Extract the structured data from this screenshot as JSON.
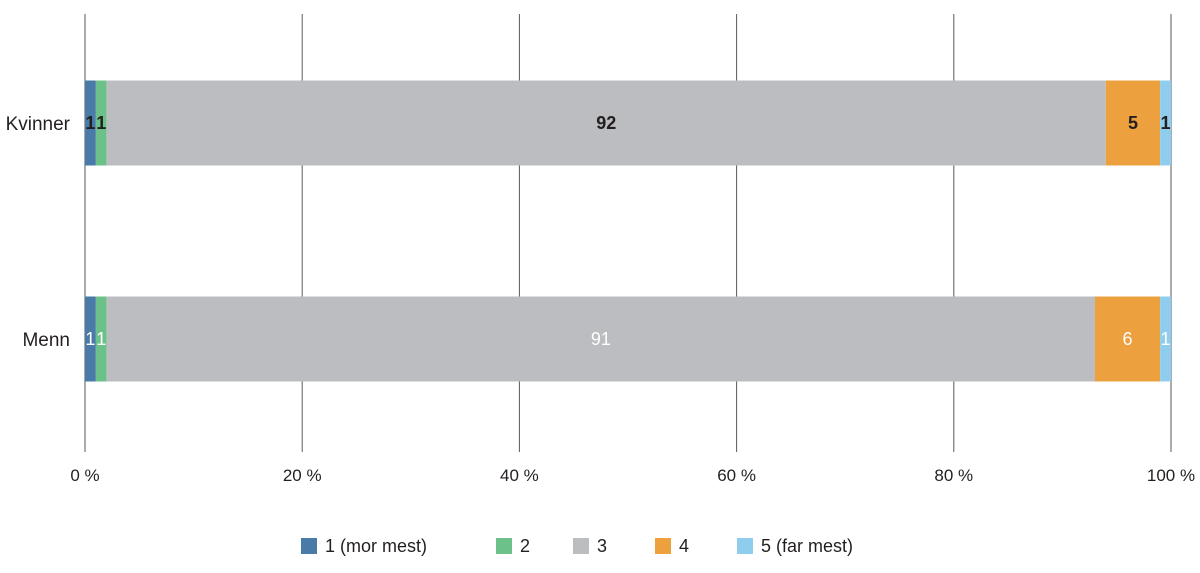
{
  "chart_data": {
    "type": "bar",
    "orientation": "horizontal",
    "stacked": true,
    "categories": [
      "Kvinner",
      "Menn"
    ],
    "series": [
      {
        "name": "1 (mor mest)",
        "color": "#4a7aa8",
        "values": [
          1,
          1
        ]
      },
      {
        "name": "2",
        "color": "#6cc18a",
        "values": [
          1,
          1
        ]
      },
      {
        "name": "3",
        "color": "#bcbdc0",
        "values": [
          92,
          91
        ]
      },
      {
        "name": "4",
        "color": "#eca03e",
        "values": [
          5,
          6
        ]
      },
      {
        "name": "5 (far mest)",
        "color": "#8fcdef",
        "values": [
          1,
          1
        ]
      }
    ],
    "category_label_style": [
      "bold-dark",
      "regular-white"
    ],
    "xlim": [
      0,
      100
    ],
    "x_ticks": [
      "0 %",
      "20 %",
      "40 %",
      "60 %",
      "80 %",
      "100 %"
    ],
    "grid": "vertical",
    "legend": "bottom"
  }
}
